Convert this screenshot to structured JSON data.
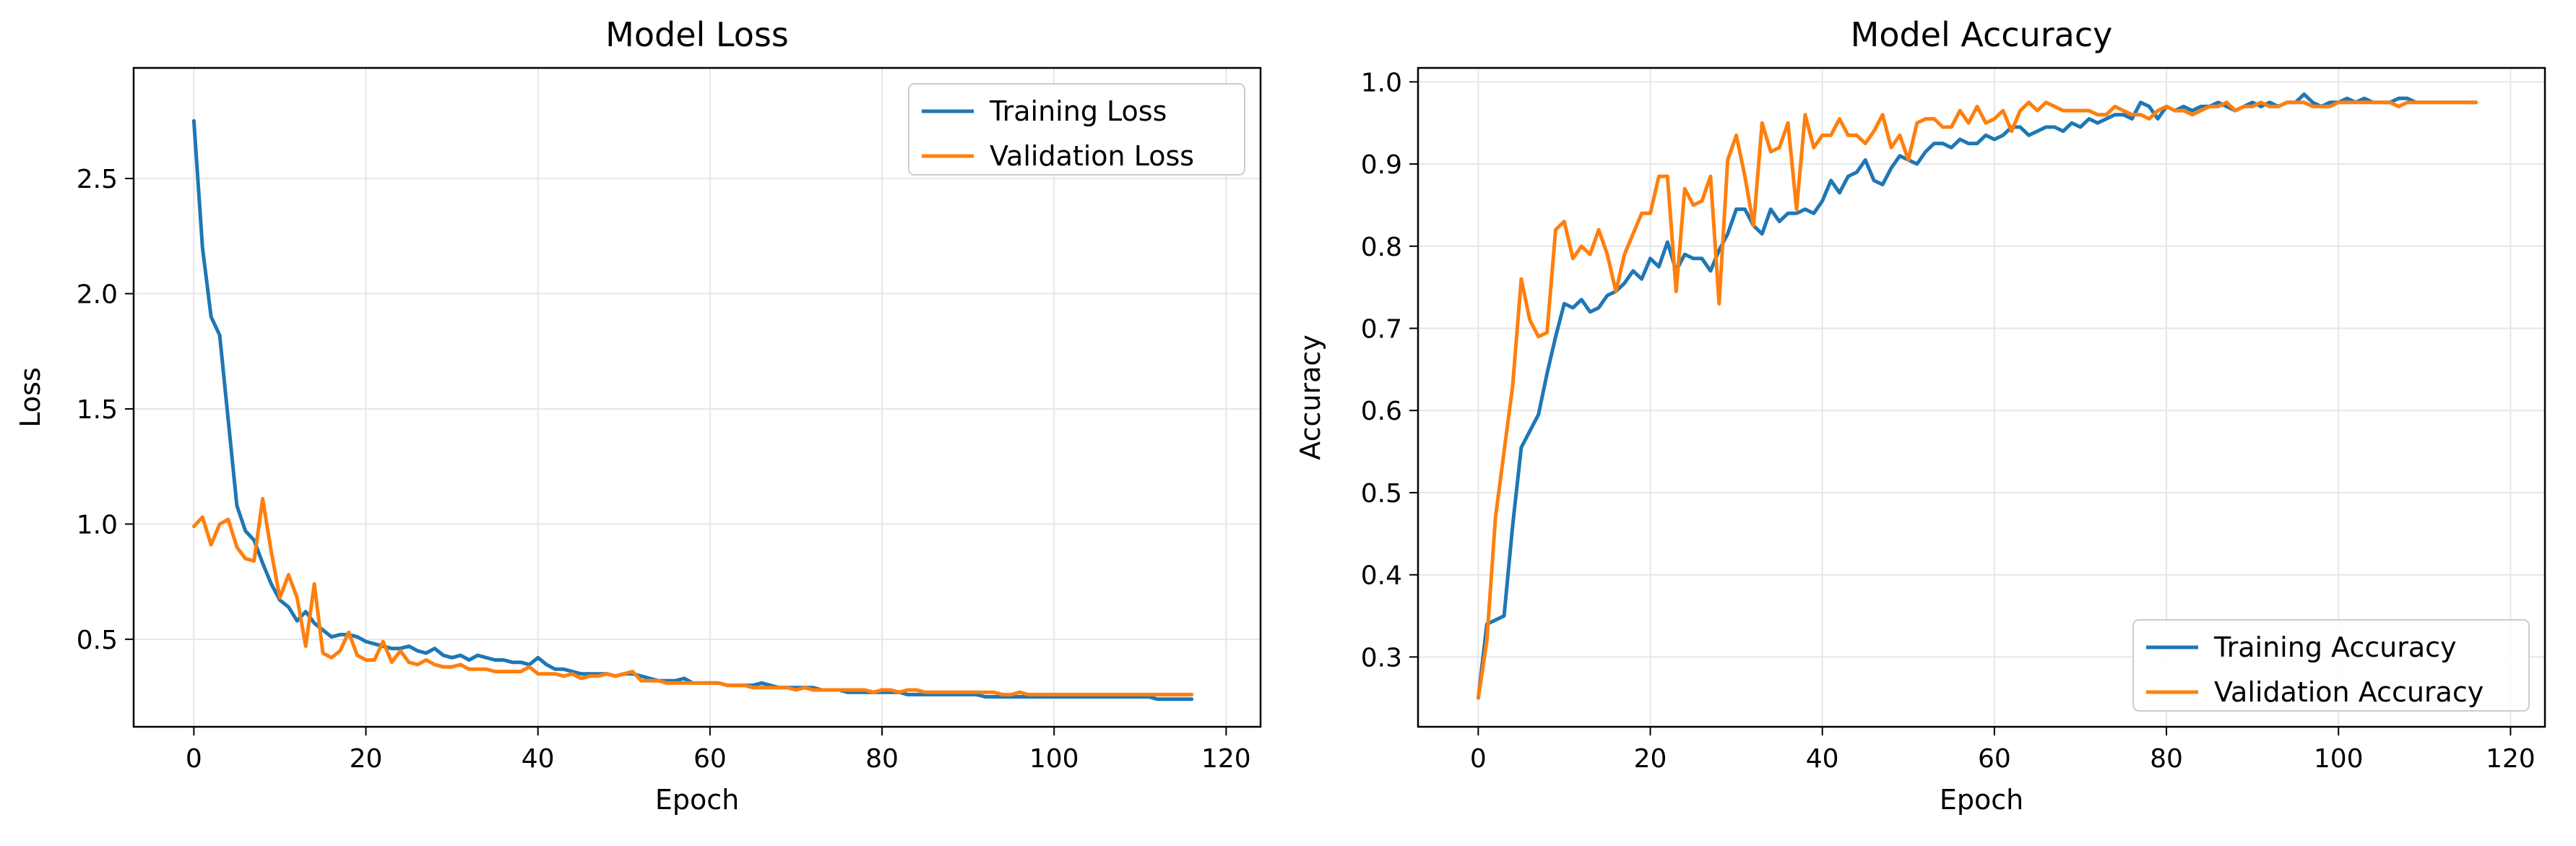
{
  "chart_data": [
    {
      "type": "line",
      "title": "Model Loss",
      "xlabel": "Epoch",
      "ylabel": "Loss",
      "xlim": [
        -7,
        124
      ],
      "ylim": [
        0.12,
        2.98
      ],
      "xticks": [
        0,
        20,
        40,
        60,
        80,
        100,
        120
      ],
      "yticks": [
        0.5,
        1.0,
        1.5,
        2.0,
        2.5
      ],
      "ytick_labels": [
        "0.5",
        "1.0",
        "1.5",
        "2.0",
        "2.5"
      ],
      "grid": true,
      "legend_position": "top-right",
      "series": [
        {
          "name": "Training Loss",
          "color": "#1f77b4",
          "values": [
            2.75,
            2.2,
            1.9,
            1.82,
            1.45,
            1.08,
            0.97,
            0.93,
            0.83,
            0.74,
            0.67,
            0.64,
            0.58,
            0.62,
            0.57,
            0.54,
            0.51,
            0.52,
            0.52,
            0.51,
            0.49,
            0.48,
            0.47,
            0.46,
            0.46,
            0.47,
            0.45,
            0.44,
            0.46,
            0.43,
            0.42,
            0.43,
            0.41,
            0.43,
            0.42,
            0.41,
            0.41,
            0.4,
            0.4,
            0.39,
            0.42,
            0.39,
            0.37,
            0.37,
            0.36,
            0.35,
            0.35,
            0.35,
            0.35,
            0.34,
            0.35,
            0.35,
            0.34,
            0.33,
            0.32,
            0.32,
            0.32,
            0.33,
            0.31,
            0.31,
            0.31,
            0.31,
            0.3,
            0.3,
            0.3,
            0.3,
            0.31,
            0.3,
            0.29,
            0.29,
            0.29,
            0.29,
            0.29,
            0.28,
            0.28,
            0.28,
            0.27,
            0.27,
            0.27,
            0.27,
            0.27,
            0.27,
            0.27,
            0.26,
            0.26,
            0.26,
            0.26,
            0.26,
            0.26,
            0.26,
            0.26,
            0.26,
            0.25,
            0.25,
            0.25,
            0.25,
            0.25,
            0.25,
            0.25,
            0.25,
            0.25,
            0.25,
            0.25,
            0.25,
            0.25,
            0.25,
            0.25,
            0.25,
            0.25,
            0.25,
            0.25,
            0.25,
            0.24,
            0.24,
            0.24,
            0.24,
            0.24
          ]
        },
        {
          "name": "Validation Loss",
          "color": "#ff7f0e",
          "values": [
            0.99,
            1.03,
            0.91,
            1.0,
            1.02,
            0.9,
            0.85,
            0.84,
            1.11,
            0.88,
            0.68,
            0.78,
            0.68,
            0.47,
            0.74,
            0.44,
            0.42,
            0.45,
            0.53,
            0.43,
            0.41,
            0.41,
            0.49,
            0.4,
            0.45,
            0.4,
            0.39,
            0.41,
            0.39,
            0.38,
            0.38,
            0.39,
            0.37,
            0.37,
            0.37,
            0.36,
            0.36,
            0.36,
            0.36,
            0.38,
            0.35,
            0.35,
            0.35,
            0.34,
            0.35,
            0.33,
            0.34,
            0.34,
            0.35,
            0.34,
            0.35,
            0.36,
            0.32,
            0.32,
            0.32,
            0.31,
            0.31,
            0.31,
            0.31,
            0.31,
            0.31,
            0.31,
            0.3,
            0.3,
            0.3,
            0.29,
            0.29,
            0.29,
            0.29,
            0.29,
            0.28,
            0.29,
            0.28,
            0.28,
            0.28,
            0.28,
            0.28,
            0.28,
            0.28,
            0.27,
            0.28,
            0.28,
            0.27,
            0.28,
            0.28,
            0.27,
            0.27,
            0.27,
            0.27,
            0.27,
            0.27,
            0.27,
            0.27,
            0.27,
            0.26,
            0.26,
            0.27,
            0.26,
            0.26,
            0.26,
            0.26,
            0.26,
            0.26,
            0.26,
            0.26,
            0.26,
            0.26,
            0.26,
            0.26,
            0.26,
            0.26,
            0.26,
            0.26,
            0.26,
            0.26,
            0.26,
            0.26
          ]
        }
      ]
    },
    {
      "type": "line",
      "title": "Model Accuracy",
      "xlabel": "Epoch",
      "ylabel": "Accuracy",
      "xlim": [
        -7,
        124
      ],
      "ylim": [
        0.215,
        1.017
      ],
      "xticks": [
        0,
        20,
        40,
        60,
        80,
        100,
        120
      ],
      "yticks": [
        0.3,
        0.4,
        0.5,
        0.6,
        0.7,
        0.8,
        0.9,
        1.0
      ],
      "ytick_labels": [
        "0.3",
        "0.4",
        "0.5",
        "0.6",
        "0.7",
        "0.8",
        "0.9",
        "1.0"
      ],
      "grid": true,
      "legend_position": "bottom-right",
      "series": [
        {
          "name": "Training Accuracy",
          "color": "#1f77b4",
          "values": [
            0.25,
            0.34,
            0.345,
            0.35,
            0.46,
            0.555,
            0.575,
            0.595,
            0.645,
            0.69,
            0.73,
            0.725,
            0.735,
            0.72,
            0.725,
            0.74,
            0.745,
            0.755,
            0.77,
            0.76,
            0.785,
            0.775,
            0.805,
            0.77,
            0.79,
            0.785,
            0.785,
            0.77,
            0.795,
            0.815,
            0.845,
            0.845,
            0.825,
            0.815,
            0.845,
            0.83,
            0.84,
            0.84,
            0.845,
            0.84,
            0.855,
            0.88,
            0.865,
            0.885,
            0.89,
            0.905,
            0.88,
            0.875,
            0.895,
            0.91,
            0.905,
            0.9,
            0.915,
            0.925,
            0.925,
            0.92,
            0.93,
            0.925,
            0.925,
            0.935,
            0.93,
            0.935,
            0.945,
            0.945,
            0.935,
            0.94,
            0.945,
            0.945,
            0.94,
            0.95,
            0.945,
            0.955,
            0.95,
            0.955,
            0.96,
            0.96,
            0.955,
            0.975,
            0.97,
            0.955,
            0.97,
            0.965,
            0.97,
            0.965,
            0.97,
            0.97,
            0.975,
            0.97,
            0.965,
            0.97,
            0.975,
            0.97,
            0.975,
            0.97,
            0.975,
            0.975,
            0.985,
            0.975,
            0.97,
            0.975,
            0.975,
            0.98,
            0.975,
            0.98,
            0.975,
            0.975,
            0.975,
            0.98,
            0.98,
            0.975,
            0.975,
            0.975,
            0.975,
            0.975,
            0.975,
            0.975,
            0.975
          ]
        },
        {
          "name": "Validation Accuracy",
          "color": "#ff7f0e",
          "values": [
            0.25,
            0.32,
            0.47,
            0.55,
            0.63,
            0.76,
            0.71,
            0.69,
            0.695,
            0.82,
            0.83,
            0.785,
            0.8,
            0.79,
            0.82,
            0.79,
            0.745,
            0.79,
            0.815,
            0.84,
            0.84,
            0.885,
            0.885,
            0.745,
            0.87,
            0.85,
            0.855,
            0.885,
            0.73,
            0.905,
            0.935,
            0.885,
            0.825,
            0.95,
            0.915,
            0.92,
            0.95,
            0.845,
            0.96,
            0.92,
            0.935,
            0.935,
            0.955,
            0.935,
            0.935,
            0.925,
            0.94,
            0.96,
            0.92,
            0.935,
            0.905,
            0.95,
            0.955,
            0.955,
            0.945,
            0.945,
            0.965,
            0.95,
            0.97,
            0.95,
            0.955,
            0.965,
            0.94,
            0.965,
            0.975,
            0.965,
            0.975,
            0.97,
            0.965,
            0.965,
            0.965,
            0.965,
            0.96,
            0.96,
            0.97,
            0.965,
            0.96,
            0.96,
            0.955,
            0.965,
            0.97,
            0.965,
            0.965,
            0.96,
            0.965,
            0.97,
            0.97,
            0.975,
            0.965,
            0.97,
            0.97,
            0.975,
            0.97,
            0.97,
            0.975,
            0.975,
            0.975,
            0.97,
            0.97,
            0.97,
            0.975,
            0.975,
            0.975,
            0.975,
            0.975,
            0.975,
            0.975,
            0.97,
            0.975,
            0.975,
            0.975,
            0.975,
            0.975,
            0.975,
            0.975,
            0.975,
            0.975
          ]
        }
      ]
    }
  ]
}
